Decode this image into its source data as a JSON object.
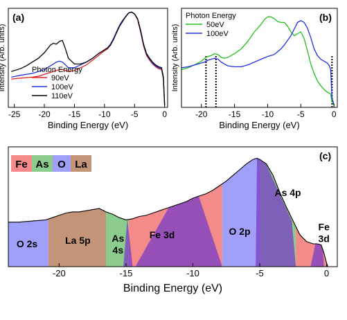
{
  "chart_data": [
    {
      "panel": "(a)",
      "type": "line",
      "xlabel": "Binding Energy (eV)",
      "ylabel": "Intensity (Arb. units)",
      "xlim": [
        -26,
        0.5
      ],
      "ylim": [
        0,
        1.05
      ],
      "xticks": [
        -25,
        -20,
        -15,
        -10,
        -5,
        0
      ],
      "legend_title": "Photon Energy",
      "legend_position": "lower-left",
      "series": [
        {
          "name": "90eV",
          "color": "#e02020",
          "x": [
            -25.5,
            -24,
            -22,
            -21,
            -20,
            -19.5,
            -19,
            -18.5,
            -18,
            -17.5,
            -17,
            -16.5,
            -16,
            -15,
            -14,
            -13,
            -12,
            -11,
            -10,
            -9.5,
            -9,
            -8.5,
            -8,
            -7.5,
            -7,
            -6.5,
            -6,
            -5.5,
            -5,
            -4.5,
            -4,
            -3.5,
            -3,
            -2.5,
            -2,
            -1.5,
            -1,
            -0.5,
            -0.2,
            0
          ],
          "y": [
            0.3,
            0.31,
            0.32,
            0.33,
            0.35,
            0.36,
            0.37,
            0.38,
            0.39,
            0.4,
            0.4,
            0.39,
            0.38,
            0.39,
            0.42,
            0.45,
            0.5,
            0.55,
            0.6,
            0.62,
            0.66,
            0.72,
            0.8,
            0.87,
            0.92,
            0.96,
            1.0,
            1.01,
            0.99,
            0.93,
            0.8,
            0.65,
            0.55,
            0.5,
            0.46,
            0.43,
            0.41,
            0.4,
            0.3,
            0.02
          ]
        },
        {
          "name": "100eV",
          "color": "#2030e0",
          "x": [
            -25.5,
            -24,
            -22,
            -21,
            -20,
            -19.5,
            -19,
            -18.5,
            -18,
            -17.5,
            -17,
            -16.5,
            -16,
            -15,
            -14,
            -13,
            -12,
            -11,
            -10,
            -9.5,
            -9,
            -8.5,
            -8,
            -7.5,
            -7,
            -6.5,
            -6,
            -5.5,
            -5,
            -4.5,
            -4,
            -3.5,
            -3,
            -2.5,
            -2,
            -1.5,
            -1,
            -0.5,
            -0.2,
            0
          ],
          "y": [
            0.32,
            0.34,
            0.36,
            0.38,
            0.4,
            0.42,
            0.44,
            0.46,
            0.48,
            0.49,
            0.48,
            0.45,
            0.42,
            0.42,
            0.45,
            0.48,
            0.52,
            0.57,
            0.61,
            0.63,
            0.67,
            0.73,
            0.8,
            0.87,
            0.92,
            0.96,
            1.0,
            1.01,
            0.99,
            0.94,
            0.81,
            0.66,
            0.56,
            0.51,
            0.47,
            0.44,
            0.42,
            0.41,
            0.31,
            0.02
          ]
        },
        {
          "name": "110eV",
          "color": "#000000",
          "x": [
            -25.5,
            -24,
            -23,
            -22,
            -21,
            -20,
            -19.5,
            -19,
            -18.5,
            -18,
            -17.5,
            -17,
            -16.5,
            -16,
            -15,
            -14,
            -13,
            -12,
            -11,
            -10,
            -9.5,
            -9,
            -8.5,
            -8,
            -7.5,
            -7,
            -6.5,
            -6,
            -5.5,
            -5,
            -4.5,
            -4,
            -3.5,
            -3,
            -2.5,
            -2,
            -1.5,
            -1,
            -0.5,
            -0.2,
            0
          ],
          "y": [
            0.38,
            0.41,
            0.44,
            0.48,
            0.52,
            0.58,
            0.62,
            0.66,
            0.68,
            0.67,
            0.7,
            0.71,
            0.62,
            0.52,
            0.46,
            0.46,
            0.48,
            0.52,
            0.57,
            0.61,
            0.63,
            0.66,
            0.72,
            0.79,
            0.86,
            0.91,
            0.96,
            1.0,
            1.01,
            0.99,
            0.94,
            0.82,
            0.67,
            0.57,
            0.52,
            0.48,
            0.45,
            0.43,
            0.42,
            0.32,
            0.02
          ]
        }
      ]
    },
    {
      "panel": "(b)",
      "type": "line",
      "xlabel": "Binding Energy (eV)",
      "ylabel": "Intensity (Arb. units)",
      "xlim": [
        -23,
        0.5
      ],
      "ylim": [
        0,
        1.05
      ],
      "xticks": [
        -20,
        -15,
        -10,
        -5,
        0
      ],
      "legend_title": "Photon Energy",
      "legend_position": "top-left",
      "markers": [
        -19.3,
        -17.8,
        -0.3
      ],
      "series": [
        {
          "name": "50eV",
          "color": "#20c020",
          "x": [
            -23,
            -22,
            -21,
            -20,
            -19.3,
            -19,
            -18.5,
            -18,
            -17.5,
            -17,
            -16.5,
            -16,
            -15,
            -14,
            -13,
            -12,
            -11,
            -10.5,
            -10,
            -9.5,
            -9,
            -8.5,
            -8,
            -7.5,
            -7,
            -6.5,
            -6,
            -5.5,
            -5,
            -4.5,
            -4,
            -3.5,
            -3,
            -2.5,
            -2,
            -1.5,
            -1,
            -0.7,
            -0.5,
            -0.3,
            0
          ],
          "y": [
            0.4,
            0.42,
            0.45,
            0.49,
            0.53,
            0.54,
            0.55,
            0.57,
            0.56,
            0.53,
            0.52,
            0.53,
            0.57,
            0.62,
            0.7,
            0.8,
            0.88,
            0.93,
            0.96,
            0.96,
            0.94,
            0.91,
            0.9,
            0.9,
            0.86,
            0.8,
            0.76,
            0.78,
            0.8,
            0.73,
            0.6,
            0.46,
            0.36,
            0.28,
            0.23,
            0.19,
            0.16,
            0.15,
            0.14,
            0.06,
            0.02
          ]
        },
        {
          "name": "100eV",
          "color": "#2030e0",
          "x": [
            -23,
            -22,
            -21,
            -20,
            -19.5,
            -19,
            -18.5,
            -18,
            -17.5,
            -17,
            -16.5,
            -16,
            -15,
            -14,
            -13,
            -12,
            -11,
            -10,
            -9,
            -8.5,
            -8,
            -7.5,
            -7,
            -6.5,
            -6,
            -5.5,
            -5,
            -4.5,
            -4,
            -3.5,
            -3,
            -2.5,
            -2,
            -1.5,
            -1,
            -0.7,
            -0.5,
            -0.3,
            0
          ],
          "y": [
            0.42,
            0.43,
            0.45,
            0.47,
            0.48,
            0.5,
            0.51,
            0.52,
            0.51,
            0.48,
            0.46,
            0.44,
            0.43,
            0.43,
            0.45,
            0.48,
            0.51,
            0.54,
            0.56,
            0.59,
            0.62,
            0.66,
            0.71,
            0.76,
            0.83,
            0.9,
            0.92,
            0.9,
            0.84,
            0.74,
            0.62,
            0.55,
            0.51,
            0.49,
            0.47,
            0.44,
            0.4,
            0.1,
            0.03
          ]
        }
      ]
    },
    {
      "panel": "(c)",
      "type": "area",
      "xlabel": "Binding Energy (eV)",
      "xlim": [
        -23.8,
        0.8
      ],
      "ylim": [
        0,
        1.05
      ],
      "xticks": [
        -20,
        -15,
        -10,
        -5,
        0
      ],
      "legend": [
        {
          "label": "Fe",
          "color": "#f48a8a"
        },
        {
          "label": "As",
          "color": "#8ccc8c"
        },
        {
          "label": "O",
          "color": "#a0a0f8"
        },
        {
          "label": "La",
          "color": "#c49478"
        }
      ],
      "envelope": {
        "x": [
          -23.8,
          -23,
          -22,
          -21,
          -20.5,
          -20,
          -19.5,
          -19,
          -18.5,
          -18,
          -17.5,
          -17,
          -16.5,
          -16,
          -15.5,
          -15,
          -14.5,
          -14,
          -13.5,
          -13,
          -12.5,
          -12,
          -11.5,
          -11,
          -10.5,
          -10,
          -9.5,
          -9,
          -8.5,
          -8,
          -7.5,
          -7,
          -6.5,
          -6,
          -5.5,
          -5.2,
          -5,
          -4.5,
          -4,
          -3.5,
          -3,
          -2.5,
          -2,
          -1.5,
          -1,
          -0.7,
          -0.4,
          -0.2,
          0,
          0.1
        ],
        "y": [
          0.39,
          0.39,
          0.4,
          0.41,
          0.43,
          0.45,
          0.47,
          0.48,
          0.48,
          0.49,
          0.5,
          0.51,
          0.48,
          0.46,
          0.43,
          0.41,
          0.42,
          0.44,
          0.45,
          0.47,
          0.49,
          0.51,
          0.53,
          0.55,
          0.57,
          0.6,
          0.62,
          0.64,
          0.67,
          0.71,
          0.75,
          0.8,
          0.85,
          0.9,
          0.94,
          0.95,
          0.94,
          0.9,
          0.8,
          0.65,
          0.52,
          0.4,
          0.28,
          0.22,
          0.2,
          0.2,
          0.19,
          0.12,
          0.03,
          0.0
        ]
      },
      "regions": [
        {
          "label": "O 2s",
          "color": "#a0a0f8",
          "from": -23.8,
          "to": -20.8
        },
        {
          "label": "La 5p",
          "color": "#c49478",
          "from": -20.8,
          "to": -16.5
        },
        {
          "label": "As 4s",
          "color": "#8ccc8c",
          "from": -16.5,
          "to": -14.8
        },
        {
          "label": "Fe 3d",
          "color": "#f48a8a",
          "from": -14.8,
          "to": -7.8
        },
        {
          "label": "O 2p",
          "color": "#a0a0f8",
          "from": -7.8,
          "to": -5.0
        },
        {
          "label": "As 4p",
          "color": "#8ccc8c",
          "from": -5.0,
          "to": -2.3
        },
        {
          "label": "Fe 3d",
          "color": "#f48a8a",
          "from": -2.3,
          "to": 0.1
        }
      ]
    }
  ]
}
